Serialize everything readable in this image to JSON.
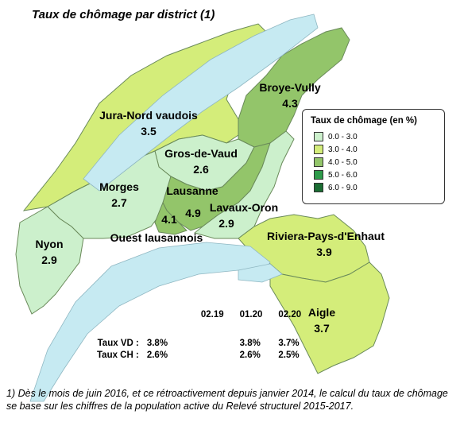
{
  "title": "Taux de chômage par district (1)",
  "legend": {
    "title": "Taux de chômage (en %)",
    "classes": [
      {
        "label": "0.0 - 3.0",
        "color": "#ccf0cc"
      },
      {
        "label": "3.0 - 4.0",
        "color": "#d4ed7a"
      },
      {
        "label": "4.0 - 5.0",
        "color": "#93c56a"
      },
      {
        "label": "5.0 - 6.0",
        "color": "#2e9b4a"
      },
      {
        "label": "6.0 - 9.0",
        "color": "#1b6d33"
      }
    ]
  },
  "districts": [
    {
      "name": "Broye-Vully",
      "value": "4.3",
      "class": 2
    },
    {
      "name": "Jura-Nord vaudois",
      "value": "3.5",
      "class": 1
    },
    {
      "name": "Gros-de-Vaud",
      "value": "2.6",
      "class": 0
    },
    {
      "name": "Morges",
      "value": "2.7",
      "class": 0
    },
    {
      "name": "Lausanne",
      "value": "4.9",
      "class": 2
    },
    {
      "name": "Ouest lausannois",
      "value": "4.1",
      "class": 2
    },
    {
      "name": "Lavaux-Oron",
      "value": "2.9",
      "class": 0
    },
    {
      "name": "Nyon",
      "value": "2.9",
      "class": 0
    },
    {
      "name": "Riviera-Pays-d'Enhaut",
      "value": "3.9",
      "class": 1
    },
    {
      "name": "Aigle",
      "value": "3.7",
      "class": 1
    }
  ],
  "stats": {
    "periods": [
      "02.19",
      "01.20",
      "02.20"
    ],
    "rows": [
      {
        "label": "Taux VD :",
        "values": [
          "3.8%",
          "3.8%",
          "3.7%"
        ]
      },
      {
        "label": "Taux CH :",
        "values": [
          "2.6%",
          "2.6%",
          "2.5%"
        ]
      }
    ]
  },
  "footnote": "1) Dès le mois de juin 2016, et ce rétroactivement depuis janvier 2014, le calcul du taux de chômage se base sur les chiffres de la population active du Relevé structurel 2015-2017.",
  "colors": {
    "water": "#c6eaf2",
    "border": "#6a8a5a"
  }
}
